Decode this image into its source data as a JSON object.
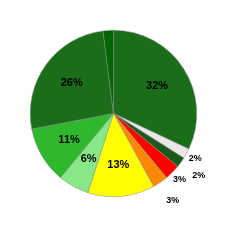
{
  "chart_data": {
    "type": "pie",
    "values": [
      32,
      2,
      2,
      3,
      3,
      13,
      6,
      11,
      26,
      2
    ],
    "colors": [
      "#1a6e1a",
      "#e8e8e8",
      "#1a5a1a",
      "#ff0000",
      "#ff8800",
      "#ffff00",
      "#88e888",
      "#2db82d",
      "#1a6e1a",
      "#006600"
    ],
    "value_labels": [
      "32%",
      "2%",
      "2%",
      "3%",
      "3%",
      "13%",
      "6%",
      "11%",
      "26%",
      null
    ],
    "data_labels": true
  }
}
